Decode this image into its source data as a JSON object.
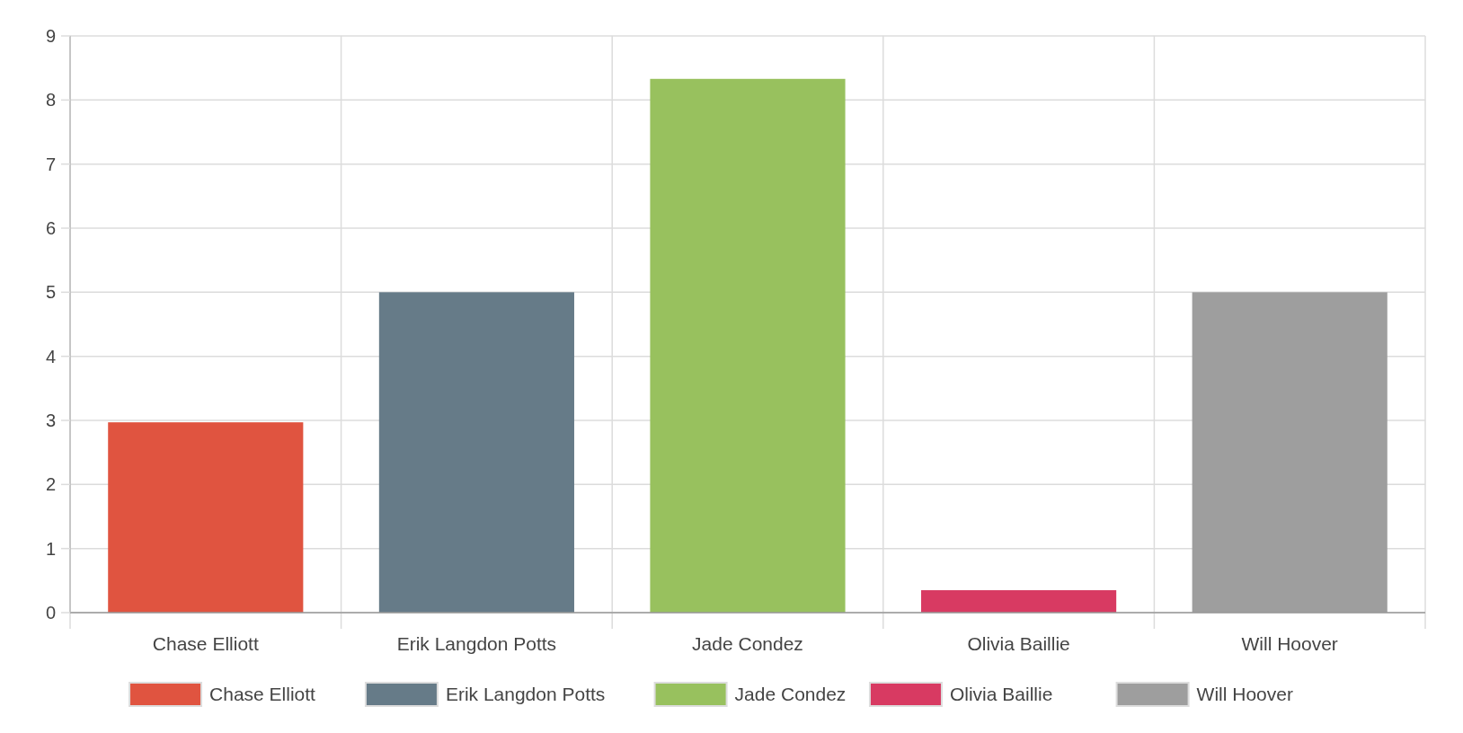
{
  "chart_data": {
    "type": "bar",
    "categories": [
      "Chase Elliott",
      "Erik Langdon Potts",
      "Jade Condez",
      "Olivia Baillie",
      "Will Hoover"
    ],
    "series": [
      {
        "name": "Chase Elliott",
        "color": "#e05440",
        "values": [
          2.97,
          null,
          null,
          null,
          null
        ]
      },
      {
        "name": "Erik Langdon Potts",
        "color": "#667b88",
        "values": [
          null,
          5,
          null,
          null,
          null
        ]
      },
      {
        "name": "Jade Condez",
        "color": "#98c15e",
        "values": [
          null,
          null,
          8.33,
          null,
          null
        ]
      },
      {
        "name": "Olivia Baillie",
        "color": "#d83a62",
        "values": [
          null,
          null,
          null,
          0.35,
          null
        ]
      },
      {
        "name": "Will Hoover",
        "color": "#9e9e9e",
        "values": [
          null,
          null,
          null,
          null,
          5
        ]
      }
    ],
    "ylim": [
      0,
      9
    ],
    "yticks": [
      0,
      1,
      2,
      3,
      4,
      5,
      6,
      7,
      8,
      9
    ],
    "grid": true,
    "legend": "bottom"
  }
}
